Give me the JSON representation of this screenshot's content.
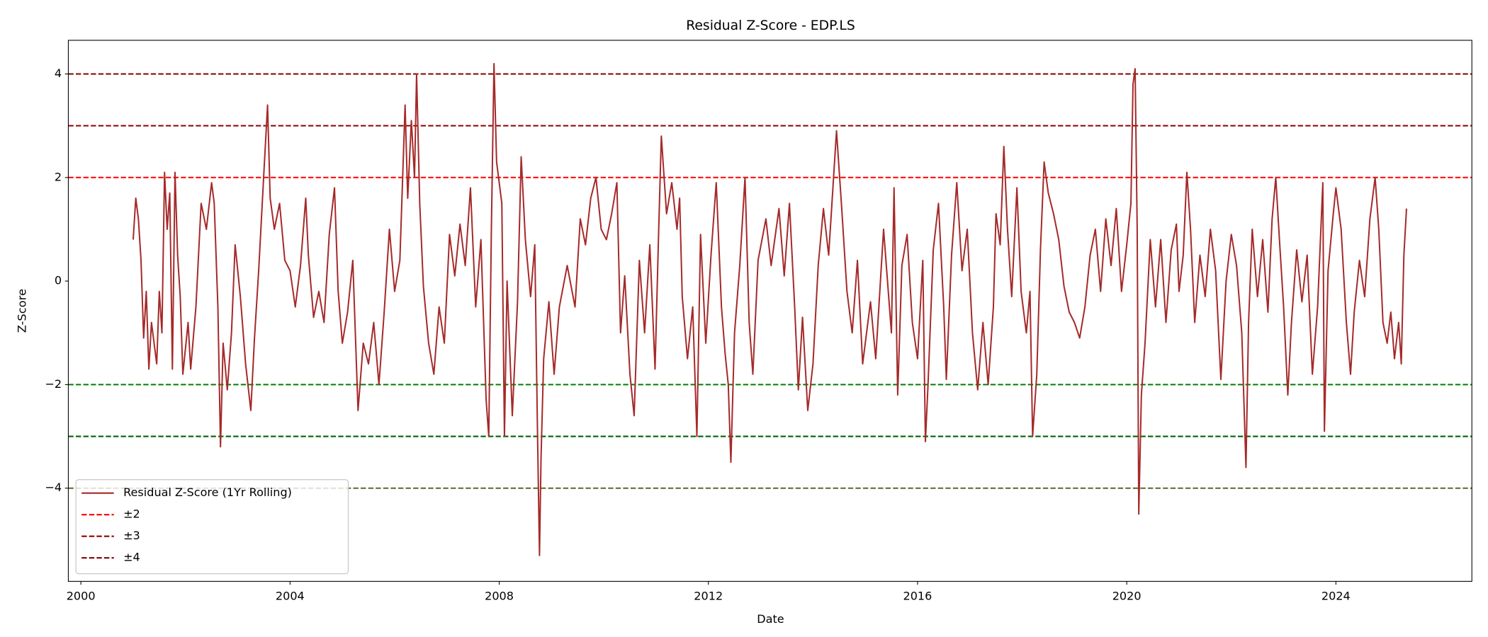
{
  "chart_data": {
    "type": "line",
    "title": "Residual Z-Score - EDP.LS",
    "xlabel": "Date",
    "ylabel": "Z-Score",
    "x": [
      2001.0,
      2001.05,
      2001.1,
      2001.15,
      2001.2,
      2001.25,
      2001.3,
      2001.35,
      2001.45,
      2001.5,
      2001.55,
      2001.6,
      2001.65,
      2001.7,
      2001.75,
      2001.8,
      2001.85,
      2001.9,
      2001.95,
      2002.05,
      2002.1,
      2002.2,
      2002.3,
      2002.4,
      2002.5,
      2002.55,
      2002.62,
      2002.67,
      2002.72,
      2002.8,
      2002.88,
      2002.95,
      2003.05,
      2003.15,
      2003.25,
      2003.32,
      2003.4,
      2003.5,
      2003.57,
      2003.62,
      2003.7,
      2003.8,
      2003.9,
      2004.0,
      2004.1,
      2004.2,
      2004.3,
      2004.35,
      2004.45,
      2004.55,
      2004.65,
      2004.75,
      2004.85,
      2004.92,
      2005.0,
      2005.1,
      2005.2,
      2005.3,
      2005.4,
      2005.5,
      2005.6,
      2005.7,
      2005.8,
      2005.9,
      2006.0,
      2006.1,
      2006.2,
      2006.25,
      2006.32,
      2006.38,
      2006.42,
      2006.48,
      2006.55,
      2006.65,
      2006.75,
      2006.85,
      2006.95,
      2007.05,
      2007.15,
      2007.25,
      2007.35,
      2007.45,
      2007.55,
      2007.65,
      2007.75,
      2007.8,
      2007.85,
      2007.9,
      2007.95,
      2008.05,
      2008.1,
      2008.15,
      2008.25,
      2008.35,
      2008.42,
      2008.5,
      2008.6,
      2008.68,
      2008.73,
      2008.77,
      2008.8,
      2008.85,
      2008.95,
      2009.05,
      2009.15,
      2009.3,
      2009.45,
      2009.55,
      2009.65,
      2009.75,
      2009.85,
      2009.95,
      2010.05,
      2010.15,
      2010.25,
      2010.32,
      2010.4,
      2010.5,
      2010.58,
      2010.68,
      2010.78,
      2010.88,
      2010.98,
      2011.05,
      2011.1,
      2011.2,
      2011.3,
      2011.4,
      2011.45,
      2011.5,
      2011.6,
      2011.7,
      2011.78,
      2011.85,
      2011.95,
      2012.05,
      2012.15,
      2012.25,
      2012.32,
      2012.38,
      2012.43,
      2012.5,
      2012.6,
      2012.7,
      2012.78,
      2012.85,
      2012.95,
      2013.1,
      2013.2,
      2013.35,
      2013.45,
      2013.55,
      2013.65,
      2013.72,
      2013.8,
      2013.9,
      2014.0,
      2014.1,
      2014.2,
      2014.3,
      2014.45,
      2014.55,
      2014.65,
      2014.75,
      2014.85,
      2014.95,
      2015.1,
      2015.2,
      2015.35,
      2015.5,
      2015.55,
      2015.62,
      2015.7,
      2015.8,
      2015.9,
      2016.0,
      2016.1,
      2016.15,
      2016.2,
      2016.3,
      2016.4,
      2016.5,
      2016.55,
      2016.65,
      2016.75,
      2016.85,
      2016.95,
      2017.05,
      2017.15,
      2017.25,
      2017.35,
      2017.45,
      2017.5,
      2017.58,
      2017.65,
      2017.72,
      2017.8,
      2017.9,
      2017.98,
      2018.08,
      2018.15,
      2018.2,
      2018.28,
      2018.35,
      2018.42,
      2018.5,
      2018.6,
      2018.7,
      2018.8,
      2018.9,
      2019.0,
      2019.1,
      2019.2,
      2019.3,
      2019.4,
      2019.5,
      2019.6,
      2019.7,
      2019.8,
      2019.9,
      2020.0,
      2020.08,
      2020.12,
      2020.16,
      2020.2,
      2020.23,
      2020.28,
      2020.35,
      2020.45,
      2020.55,
      2020.65,
      2020.75,
      2020.85,
      2020.95,
      2021.0,
      2021.08,
      2021.15,
      2021.22,
      2021.3,
      2021.4,
      2021.5,
      2021.6,
      2021.7,
      2021.8,
      2021.9,
      2022.0,
      2022.1,
      2022.2,
      2022.28,
      2022.33,
      2022.4,
      2022.5,
      2022.6,
      2022.7,
      2022.78,
      2022.85,
      2022.92,
      2023.0,
      2023.08,
      2023.15,
      2023.25,
      2023.35,
      2023.45,
      2023.55,
      2023.65,
      2023.75,
      2023.78,
      2023.85,
      2023.95,
      2024.0,
      2024.1,
      2024.2,
      2024.28,
      2024.35,
      2024.45,
      2024.55,
      2024.65,
      2024.75,
      2024.82,
      2024.9,
      2024.98,
      2025.05,
      2025.12,
      2025.2,
      2025.25,
      2025.3,
      2025.35
    ],
    "series": [
      {
        "name": "Residual Z-Score (1Yr Rolling)",
        "color": "#a52a2a",
        "values": [
          0.8,
          1.6,
          1.2,
          0.4,
          -1.1,
          -0.2,
          -1.7,
          -0.8,
          -1.6,
          -0.2,
          -1.0,
          2.1,
          1.0,
          1.7,
          -1.7,
          2.1,
          0.5,
          -0.3,
          -1.8,
          -0.8,
          -1.7,
          -0.5,
          1.5,
          1.0,
          1.9,
          1.5,
          -0.5,
          -3.2,
          -1.2,
          -2.1,
          -1.0,
          0.7,
          -0.3,
          -1.6,
          -2.5,
          -1.1,
          0.2,
          2.1,
          3.4,
          1.6,
          1.0,
          1.5,
          0.4,
          0.2,
          -0.5,
          0.3,
          1.6,
          0.5,
          -0.7,
          -0.2,
          -0.8,
          0.9,
          1.8,
          -0.2,
          -1.2,
          -0.6,
          0.4,
          -2.5,
          -1.2,
          -1.6,
          -0.8,
          -2.0,
          -0.6,
          1.0,
          -0.2,
          0.4,
          3.4,
          1.6,
          3.1,
          2.0,
          4.0,
          1.5,
          -0.1,
          -1.2,
          -1.8,
          -0.5,
          -1.2,
          0.9,
          0.1,
          1.1,
          0.3,
          1.8,
          -0.5,
          0.8,
          -2.3,
          -3.0,
          1.0,
          4.2,
          2.3,
          1.5,
          -3.0,
          0.0,
          -2.6,
          -0.4,
          2.4,
          0.8,
          -0.3,
          0.7,
          -2.8,
          -5.3,
          -3.4,
          -1.5,
          -0.4,
          -1.8,
          -0.5,
          0.3,
          -0.5,
          1.2,
          0.7,
          1.6,
          2.0,
          1.0,
          0.8,
          1.3,
          1.9,
          -1.0,
          0.1,
          -1.8,
          -2.6,
          0.4,
          -1.0,
          0.7,
          -1.7,
          1.0,
          2.8,
          1.3,
          1.9,
          1.0,
          1.6,
          -0.3,
          -1.5,
          -0.5,
          -3.0,
          0.9,
          -1.2,
          0.5,
          1.9,
          -0.5,
          -1.4,
          -2.0,
          -3.5,
          -1.0,
          0.3,
          2.0,
          -0.8,
          -1.8,
          0.4,
          1.2,
          0.3,
          1.4,
          0.1,
          1.5,
          -0.5,
          -2.1,
          -0.7,
          -2.5,
          -1.6,
          0.3,
          1.4,
          0.5,
          2.9,
          1.4,
          -0.2,
          -1.0,
          0.4,
          -1.6,
          -0.4,
          -1.5,
          1.0,
          -1.0,
          1.8,
          -2.2,
          0.3,
          0.9,
          -0.8,
          -1.5,
          0.4,
          -3.1,
          -2.0,
          0.6,
          1.5,
          -0.5,
          -1.9,
          0.5,
          1.9,
          0.2,
          1.0,
          -1.0,
          -2.1,
          -0.8,
          -2.0,
          -0.5,
          1.3,
          0.7,
          2.6,
          1.0,
          -0.3,
          1.8,
          -0.2,
          -1.0,
          -0.2,
          -3.0,
          -1.8,
          0.6,
          2.3,
          1.7,
          1.3,
          0.8,
          -0.1,
          -0.6,
          -0.8,
          -1.1,
          -0.5,
          0.5,
          1.0,
          -0.2,
          1.2,
          0.3,
          1.4,
          -0.2,
          0.7,
          1.5,
          3.8,
          4.1,
          1.0,
          -4.5,
          -2.2,
          -1.2,
          0.8,
          -0.5,
          0.8,
          -0.8,
          0.6,
          1.1,
          -0.2,
          0.5,
          2.1,
          1.0,
          -0.8,
          0.5,
          -0.3,
          1.0,
          0.2,
          -1.9,
          0.0,
          0.9,
          0.3,
          -1.0,
          -3.6,
          -0.8,
          1.0,
          -0.3,
          0.8,
          -0.6,
          1.2,
          2.0,
          0.8,
          -0.5,
          -2.2,
          -0.8,
          0.6,
          -0.4,
          0.5,
          -1.8,
          -0.5,
          1.9,
          -2.9,
          0.2,
          1.3,
          1.8,
          1.0,
          -0.8,
          -1.8,
          -0.6,
          0.4,
          -0.3,
          1.2,
          2.0,
          1.0,
          -0.8,
          -1.2,
          -0.6,
          -1.5,
          -0.8,
          -1.6,
          0.5,
          1.4
        ]
      }
    ],
    "reference_lines": [
      {
        "name": "±2",
        "values": [
          2,
          -2
        ],
        "colors": [
          "#ff0000",
          "#008000"
        ]
      },
      {
        "name": "±3",
        "values": [
          3,
          -3
        ],
        "colors": [
          "#8b0000",
          "#006400"
        ]
      },
      {
        "name": "±4",
        "values": [
          4,
          -4
        ],
        "colors": [
          "#800000",
          "#556b2f"
        ]
      }
    ],
    "xlim": [
      1999.76,
      2026.6
    ],
    "xticks": [
      2000,
      2004,
      2008,
      2012,
      2016,
      2020,
      2024
    ],
    "ylim": [
      -5.8,
      4.65
    ],
    "yticks": [
      {
        "value": -4,
        "label": "−4"
      },
      {
        "value": -2,
        "label": "−2"
      },
      0,
      2,
      4
    ],
    "legend": "lower left"
  }
}
